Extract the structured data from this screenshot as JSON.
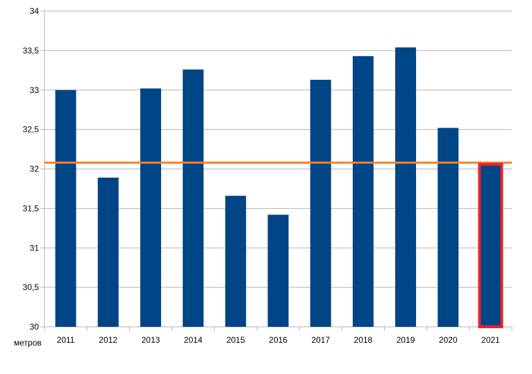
{
  "chart_data": {
    "type": "bar",
    "title": "",
    "xlabel": "",
    "ylabel": "",
    "unit_label": "метров",
    "categories": [
      "2011",
      "2012",
      "2013",
      "2014",
      "2015",
      "2016",
      "2017",
      "2018",
      "2019",
      "2020",
      "2021"
    ],
    "values": [
      33.0,
      31.89,
      33.02,
      33.26,
      31.66,
      31.42,
      33.13,
      33.43,
      33.54,
      32.52,
      32.05
    ],
    "ylim": [
      30,
      34
    ],
    "yticks": [
      "30",
      "30,5",
      "31",
      "31,5",
      "32",
      "32,5",
      "33",
      "33,5",
      "34"
    ],
    "ytick_values": [
      30,
      30.5,
      31,
      31.5,
      32,
      32.5,
      33,
      33.5,
      34
    ],
    "reference_line": 32.08,
    "highlighted_category": "2021",
    "grid": true,
    "legend": "none",
    "colors": {
      "bar": "#004586",
      "reference_line": "#ff7f27",
      "highlight_border": "#e8232a",
      "grid": "#b3b3b3"
    }
  }
}
